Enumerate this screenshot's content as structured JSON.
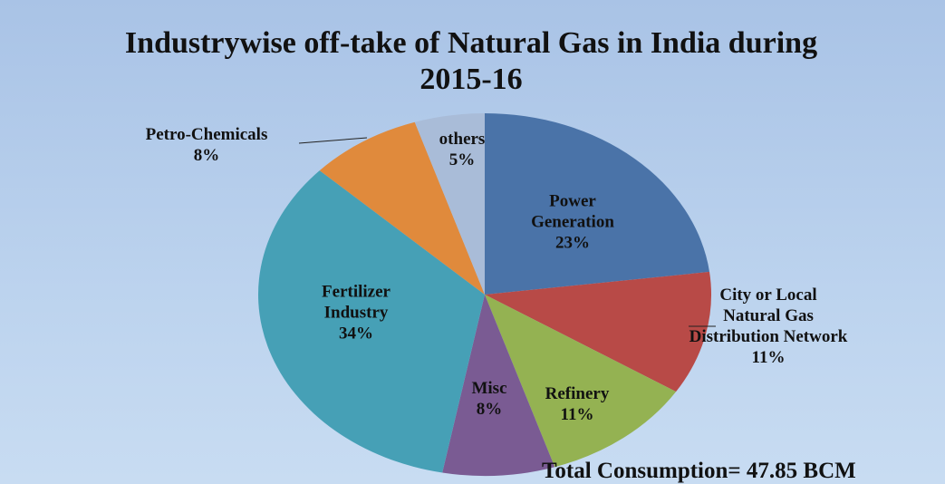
{
  "chart_data": {
    "type": "pie",
    "title": "Industrywise off-take of Natural Gas in India during 2015-16",
    "categories": [
      "Power Generation",
      "City or Local Natural Gas Distribution Network",
      "Refinery",
      "Misc",
      "Fertilizer Industry",
      "Petro-Chemicals",
      "others"
    ],
    "values": [
      23,
      11,
      11,
      8,
      34,
      8,
      5
    ],
    "value_labels": [
      "23%",
      "11%",
      "11%",
      "8%",
      "34%",
      "8%",
      "5%"
    ],
    "colors": [
      "#4a73a8",
      "#b84a47",
      "#94b252",
      "#7a5b93",
      "#46a0b6",
      "#e08a3c",
      "#a9bcd8"
    ],
    "annotation": "Total Consumption= 47.85 BCM"
  }
}
